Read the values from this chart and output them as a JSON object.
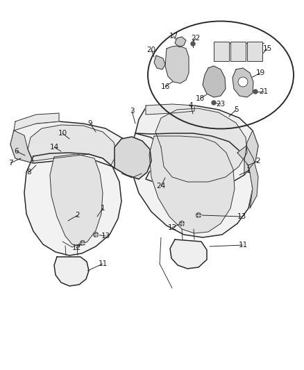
{
  "bg_color": "#ffffff",
  "line_color": "#2a2a2a",
  "label_color": "#1a1a1a",
  "fig_width": 4.38,
  "fig_height": 5.33,
  "dpi": 100
}
